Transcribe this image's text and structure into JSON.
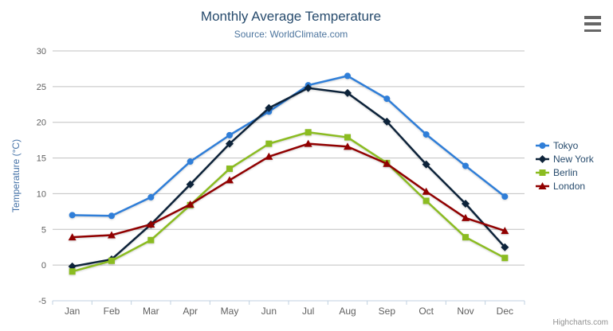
{
  "chart_data": {
    "type": "line",
    "title": "Monthly Average Temperature",
    "subtitle": "Source: WorldClimate.com",
    "categories": [
      "Jan",
      "Feb",
      "Mar",
      "Apr",
      "May",
      "Jun",
      "Jul",
      "Aug",
      "Sep",
      "Oct",
      "Nov",
      "Dec"
    ],
    "xlabel": "",
    "ylabel": "Temperature (°C)",
    "ylim": [
      -5,
      30
    ],
    "y_ticks": [
      -5,
      0,
      5,
      10,
      15,
      20,
      25,
      30
    ],
    "grid": true,
    "legend_position": "right",
    "series": [
      {
        "name": "Tokyo",
        "color": "#2f7ed8",
        "marker": "circle",
        "values": [
          7.0,
          6.9,
          9.5,
          14.5,
          18.2,
          21.5,
          25.2,
          26.5,
          23.3,
          18.3,
          13.9,
          9.6
        ]
      },
      {
        "name": "New York",
        "color": "#0d233a",
        "marker": "diamond",
        "values": [
          -0.2,
          0.8,
          5.7,
          11.3,
          17.0,
          22.0,
          24.8,
          24.1,
          20.1,
          14.1,
          8.6,
          2.5
        ]
      },
      {
        "name": "Berlin",
        "color": "#8bbc21",
        "marker": "square",
        "values": [
          -0.9,
          0.6,
          3.5,
          8.4,
          13.5,
          17.0,
          18.6,
          17.9,
          14.3,
          9.0,
          3.9,
          1.0
        ]
      },
      {
        "name": "London",
        "color": "#910000",
        "marker": "triangle",
        "values": [
          3.9,
          4.2,
          5.7,
          8.5,
          11.9,
          15.2,
          17.0,
          16.6,
          14.2,
          10.3,
          6.6,
          4.8
        ]
      }
    ]
  },
  "menu": {
    "icon": "hamburger-icon"
  },
  "credits": {
    "label": "Highcharts.com"
  },
  "theme": {
    "background": "#ffffff",
    "title_color": "#274b6d",
    "subtitle_color": "#4d759e",
    "grid_color": "#c0c0c0",
    "axis_line_color": "#c0d0e0",
    "axis_label_color": "#606060",
    "axis_title_color": "#4572a7",
    "legend_text_color": "#274b6d",
    "credits_color": "#909090",
    "menu_icon_color": "#666666"
  }
}
